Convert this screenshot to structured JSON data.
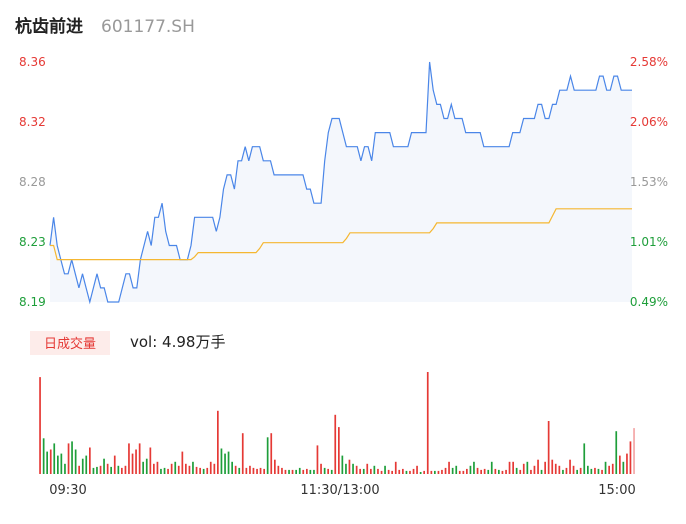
{
  "header": {
    "name": "杭齿前进",
    "code": "601177.SH"
  },
  "volume": {
    "badge": "日成交量",
    "label": "vol: 4.98万手"
  },
  "colors": {
    "price": "#4a86e8",
    "avg": "#f5b731",
    "up": "#e53935",
    "down": "#1e9e3a",
    "neutral": "#999999",
    "fill": "#f4f7fc"
  },
  "chart_data": {
    "type": "line",
    "title": "",
    "xlabel": "",
    "ylabel": "",
    "ylim": [
      8.19,
      8.36
    ],
    "grid": false,
    "x_ticks": [
      "09:30",
      "11:30/13:00",
      "15:00"
    ],
    "y_ticks_left": [
      "8.36",
      "8.32",
      "8.28",
      "8.23",
      "8.19"
    ],
    "y_ticks_right": [
      "2.58%",
      "2.06%",
      "1.53%",
      "1.01%",
      "0.49%"
    ],
    "price": [
      8.23,
      8.25,
      8.23,
      8.22,
      8.21,
      8.21,
      8.22,
      8.21,
      8.2,
      8.21,
      8.2,
      8.19,
      8.2,
      8.21,
      8.2,
      8.2,
      8.19,
      8.19,
      8.19,
      8.19,
      8.2,
      8.21,
      8.21,
      8.2,
      8.2,
      8.22,
      8.23,
      8.24,
      8.23,
      8.25,
      8.25,
      8.26,
      8.24,
      8.23,
      8.23,
      8.23,
      8.22,
      8.22,
      8.22,
      8.23,
      8.25,
      8.25,
      8.25,
      8.25,
      8.25,
      8.25,
      8.24,
      8.25,
      8.27,
      8.28,
      8.28,
      8.27,
      8.29,
      8.29,
      8.3,
      8.29,
      8.3,
      8.3,
      8.3,
      8.29,
      8.29,
      8.29,
      8.28,
      8.28,
      8.28,
      8.28,
      8.28,
      8.28,
      8.28,
      8.28,
      8.28,
      8.27,
      8.27,
      8.26,
      8.26,
      8.26,
      8.29,
      8.31,
      8.32,
      8.32,
      8.32,
      8.31,
      8.3,
      8.3,
      8.3,
      8.3,
      8.29,
      8.3,
      8.3,
      8.29,
      8.31,
      8.31,
      8.31,
      8.31,
      8.31,
      8.3,
      8.3,
      8.3,
      8.3,
      8.3,
      8.31,
      8.31,
      8.31,
      8.31,
      8.31,
      8.36,
      8.34,
      8.33,
      8.33,
      8.32,
      8.32,
      8.33,
      8.32,
      8.32,
      8.32,
      8.31,
      8.31,
      8.31,
      8.31,
      8.31,
      8.3,
      8.3,
      8.3,
      8.3,
      8.3,
      8.3,
      8.3,
      8.3,
      8.31,
      8.31,
      8.31,
      8.32,
      8.32,
      8.32,
      8.32,
      8.33,
      8.33,
      8.32,
      8.32,
      8.33,
      8.33,
      8.34,
      8.34,
      8.34,
      8.35,
      8.34,
      8.34,
      8.34,
      8.34,
      8.34,
      8.34,
      8.34,
      8.35,
      8.35,
      8.34,
      8.34,
      8.35,
      8.35,
      8.34,
      8.34,
      8.34,
      8.34
    ],
    "avg_price": [
      8.23,
      8.23,
      8.22,
      8.22,
      8.22,
      8.22,
      8.22,
      8.22,
      8.22,
      8.22,
      8.22,
      8.22,
      8.22,
      8.22,
      8.22,
      8.22,
      8.22,
      8.22,
      8.22,
      8.22,
      8.22,
      8.22,
      8.22,
      8.22,
      8.22,
      8.22,
      8.22,
      8.22,
      8.22,
      8.22,
      8.22,
      8.22,
      8.22,
      8.22,
      8.22,
      8.22,
      8.22,
      8.22,
      8.22,
      8.22,
      8.222,
      8.225,
      8.225,
      8.225,
      8.225,
      8.225,
      8.225,
      8.225,
      8.225,
      8.225,
      8.225,
      8.225,
      8.225,
      8.225,
      8.225,
      8.225,
      8.225,
      8.225,
      8.228,
      8.232,
      8.232,
      8.232,
      8.232,
      8.232,
      8.232,
      8.232,
      8.232,
      8.232,
      8.232,
      8.232,
      8.232,
      8.232,
      8.232,
      8.232,
      8.232,
      8.232,
      8.232,
      8.232,
      8.232,
      8.232,
      8.232,
      8.232,
      8.235,
      8.239,
      8.239,
      8.239,
      8.239,
      8.239,
      8.239,
      8.239,
      8.239,
      8.239,
      8.239,
      8.239,
      8.239,
      8.239,
      8.239,
      8.239,
      8.239,
      8.239,
      8.239,
      8.239,
      8.239,
      8.239,
      8.239,
      8.239,
      8.242,
      8.246,
      8.246,
      8.246,
      8.246,
      8.246,
      8.246,
      8.246,
      8.246,
      8.246,
      8.246,
      8.246,
      8.246,
      8.246,
      8.246,
      8.246,
      8.246,
      8.246,
      8.246,
      8.246,
      8.246,
      8.246,
      8.246,
      8.246,
      8.246,
      8.246,
      8.246,
      8.246,
      8.246,
      8.246,
      8.246,
      8.246,
      8.246,
      8.251,
      8.256,
      8.256,
      8.256,
      8.256,
      8.256,
      8.256,
      8.256,
      8.256,
      8.256,
      8.256,
      8.256,
      8.256,
      8.256,
      8.256,
      8.256,
      8.256,
      8.256,
      8.256,
      8.256,
      8.256,
      8.256,
      8.256
    ],
    "volume_bars": [
      {
        "v": 95,
        "d": "u"
      },
      {
        "v": 35,
        "d": "d"
      },
      {
        "v": 22,
        "d": "d"
      },
      {
        "v": 24,
        "d": "u"
      },
      {
        "v": 30,
        "d": "d"
      },
      {
        "v": 18,
        "d": "d"
      },
      {
        "v": 20,
        "d": "d"
      },
      {
        "v": 10,
        "d": "d"
      },
      {
        "v": 30,
        "d": "u"
      },
      {
        "v": 32,
        "d": "d"
      },
      {
        "v": 24,
        "d": "d"
      },
      {
        "v": 8,
        "d": "u"
      },
      {
        "v": 15,
        "d": "d"
      },
      {
        "v": 18,
        "d": "d"
      },
      {
        "v": 26,
        "d": "u"
      },
      {
        "v": 6,
        "d": "d"
      },
      {
        "v": 7,
        "d": "d"
      },
      {
        "v": 8,
        "d": "u"
      },
      {
        "v": 15,
        "d": "d"
      },
      {
        "v": 10,
        "d": "u"
      },
      {
        "v": 7,
        "d": "d"
      },
      {
        "v": 18,
        "d": "u"
      },
      {
        "v": 8,
        "d": "d"
      },
      {
        "v": 6,
        "d": "u"
      },
      {
        "v": 8,
        "d": "u"
      },
      {
        "v": 30,
        "d": "u"
      },
      {
        "v": 20,
        "d": "u"
      },
      {
        "v": 24,
        "d": "u"
      },
      {
        "v": 30,
        "d": "u"
      },
      {
        "v": 12,
        "d": "d"
      },
      {
        "v": 15,
        "d": "d"
      },
      {
        "v": 26,
        "d": "u"
      },
      {
        "v": 10,
        "d": "u"
      },
      {
        "v": 12,
        "d": "u"
      },
      {
        "v": 5,
        "d": "d"
      },
      {
        "v": 6,
        "d": "d"
      },
      {
        "v": 5,
        "d": "u"
      },
      {
        "v": 10,
        "d": "u"
      },
      {
        "v": 12,
        "d": "d"
      },
      {
        "v": 8,
        "d": "u"
      },
      {
        "v": 22,
        "d": "u"
      },
      {
        "v": 10,
        "d": "u"
      },
      {
        "v": 8,
        "d": "u"
      },
      {
        "v": 12,
        "d": "d"
      },
      {
        "v": 7,
        "d": "u"
      },
      {
        "v": 6,
        "d": "u"
      },
      {
        "v": 5,
        "d": "d"
      },
      {
        "v": 6,
        "d": "u"
      },
      {
        "v": 12,
        "d": "u"
      },
      {
        "v": 10,
        "d": "u"
      },
      {
        "v": 62,
        "d": "u"
      },
      {
        "v": 25,
        "d": "d"
      },
      {
        "v": 20,
        "d": "d"
      },
      {
        "v": 22,
        "d": "d"
      },
      {
        "v": 12,
        "d": "d"
      },
      {
        "v": 8,
        "d": "u"
      },
      {
        "v": 6,
        "d": "d"
      },
      {
        "v": 40,
        "d": "u"
      },
      {
        "v": 6,
        "d": "u"
      },
      {
        "v": 8,
        "d": "u"
      },
      {
        "v": 6,
        "d": "u"
      },
      {
        "v": 5,
        "d": "u"
      },
      {
        "v": 6,
        "d": "u"
      },
      {
        "v": 5,
        "d": "u"
      },
      {
        "v": 36,
        "d": "d"
      },
      {
        "v": 40,
        "d": "u"
      },
      {
        "v": 14,
        "d": "u"
      },
      {
        "v": 8,
        "d": "u"
      },
      {
        "v": 6,
        "d": "u"
      },
      {
        "v": 4,
        "d": "u"
      },
      {
        "v": 4,
        "d": "d"
      },
      {
        "v": 4,
        "d": "u"
      },
      {
        "v": 4,
        "d": "d"
      },
      {
        "v": 6,
        "d": "d"
      },
      {
        "v": 4,
        "d": "u"
      },
      {
        "v": 5,
        "d": "u"
      },
      {
        "v": 4,
        "d": "d"
      },
      {
        "v": 4,
        "d": "d"
      },
      {
        "v": 28,
        "d": "u"
      },
      {
        "v": 10,
        "d": "u"
      },
      {
        "v": 6,
        "d": "d"
      },
      {
        "v": 5,
        "d": "u"
      },
      {
        "v": 4,
        "d": "d"
      },
      {
        "v": 58,
        "d": "u"
      },
      {
        "v": 46,
        "d": "u"
      },
      {
        "v": 18,
        "d": "d"
      },
      {
        "v": 10,
        "d": "d"
      },
      {
        "v": 14,
        "d": "u"
      },
      {
        "v": 10,
        "d": "d"
      },
      {
        "v": 8,
        "d": "u"
      },
      {
        "v": 5,
        "d": "u"
      },
      {
        "v": 5,
        "d": "d"
      },
      {
        "v": 10,
        "d": "u"
      },
      {
        "v": 5,
        "d": "u"
      },
      {
        "v": 8,
        "d": "d"
      },
      {
        "v": 5,
        "d": "u"
      },
      {
        "v": 3,
        "d": "u"
      },
      {
        "v": 8,
        "d": "d"
      },
      {
        "v": 4,
        "d": "u"
      },
      {
        "v": 3,
        "d": "u"
      },
      {
        "v": 12,
        "d": "u"
      },
      {
        "v": 4,
        "d": "u"
      },
      {
        "v": 5,
        "d": "u"
      },
      {
        "v": 3,
        "d": "d"
      },
      {
        "v": 3,
        "d": "u"
      },
      {
        "v": 5,
        "d": "u"
      },
      {
        "v": 8,
        "d": "u"
      },
      {
        "v": 2,
        "d": "d"
      },
      {
        "v": 3,
        "d": "u"
      },
      {
        "v": 100,
        "d": "u"
      },
      {
        "v": 3,
        "d": "u"
      },
      {
        "v": 3,
        "d": "d"
      },
      {
        "v": 3,
        "d": "u"
      },
      {
        "v": 4,
        "d": "u"
      },
      {
        "v": 6,
        "d": "u"
      },
      {
        "v": 12,
        "d": "u"
      },
      {
        "v": 6,
        "d": "d"
      },
      {
        "v": 8,
        "d": "d"
      },
      {
        "v": 3,
        "d": "u"
      },
      {
        "v": 3,
        "d": "u"
      },
      {
        "v": 5,
        "d": "u"
      },
      {
        "v": 8,
        "d": "d"
      },
      {
        "v": 12,
        "d": "d"
      },
      {
        "v": 6,
        "d": "u"
      },
      {
        "v": 4,
        "d": "u"
      },
      {
        "v": 5,
        "d": "u"
      },
      {
        "v": 4,
        "d": "d"
      },
      {
        "v": 12,
        "d": "d"
      },
      {
        "v": 5,
        "d": "u"
      },
      {
        "v": 4,
        "d": "d"
      },
      {
        "v": 3,
        "d": "u"
      },
      {
        "v": 4,
        "d": "u"
      },
      {
        "v": 12,
        "d": "u"
      },
      {
        "v": 12,
        "d": "u"
      },
      {
        "v": 6,
        "d": "d"
      },
      {
        "v": 4,
        "d": "u"
      },
      {
        "v": 10,
        "d": "u"
      },
      {
        "v": 12,
        "d": "d"
      },
      {
        "v": 4,
        "d": "u"
      },
      {
        "v": 8,
        "d": "u"
      },
      {
        "v": 14,
        "d": "u"
      },
      {
        "v": 4,
        "d": "d"
      },
      {
        "v": 12,
        "d": "u"
      },
      {
        "v": 52,
        "d": "u"
      },
      {
        "v": 14,
        "d": "u"
      },
      {
        "v": 10,
        "d": "u"
      },
      {
        "v": 8,
        "d": "u"
      },
      {
        "v": 4,
        "d": "d"
      },
      {
        "v": 6,
        "d": "u"
      },
      {
        "v": 14,
        "d": "u"
      },
      {
        "v": 8,
        "d": "u"
      },
      {
        "v": 4,
        "d": "d"
      },
      {
        "v": 6,
        "d": "u"
      },
      {
        "v": 30,
        "d": "d"
      },
      {
        "v": 8,
        "d": "d"
      },
      {
        "v": 5,
        "d": "d"
      },
      {
        "v": 6,
        "d": "u"
      },
      {
        "v": 5,
        "d": "d"
      },
      {
        "v": 4,
        "d": "u"
      },
      {
        "v": 12,
        "d": "d"
      },
      {
        "v": 8,
        "d": "u"
      },
      {
        "v": 10,
        "d": "u"
      },
      {
        "v": 42,
        "d": "d"
      },
      {
        "v": 18,
        "d": "u"
      },
      {
        "v": 12,
        "d": "d"
      },
      {
        "v": 20,
        "d": "u"
      },
      {
        "v": 32,
        "d": "u"
      },
      {
        "v": 45,
        "d": "n"
      }
    ]
  }
}
